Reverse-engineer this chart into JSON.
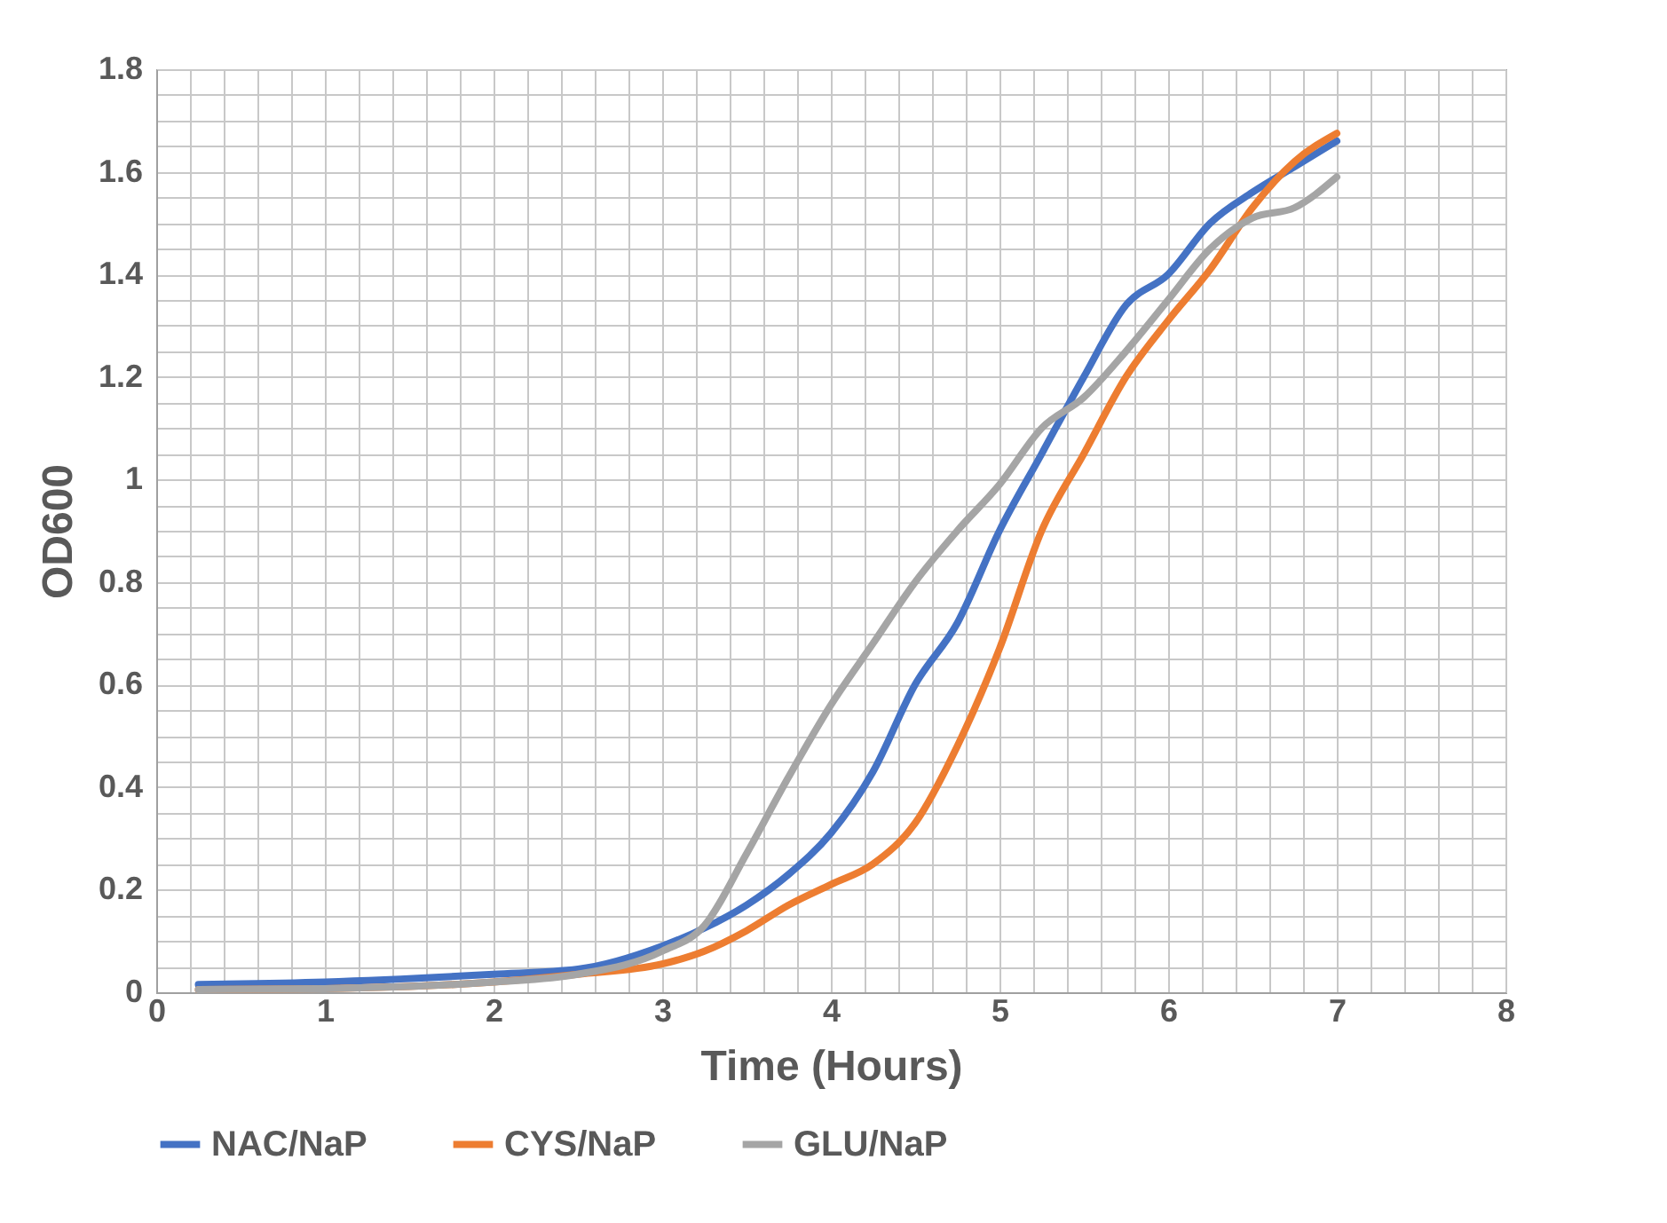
{
  "chart_data": {
    "type": "line",
    "xlabel": "Time (Hours)",
    "ylabel": "OD600",
    "x": [
      0.25,
      1,
      2,
      2.5,
      3,
      3.25,
      3.5,
      3.75,
      4,
      4.25,
      4.5,
      4.75,
      5,
      5.25,
      5.5,
      5.75,
      6,
      6.25,
      6.5,
      6.75,
      7
    ],
    "series": [
      {
        "name": "NAC/NaP",
        "color": "#4472c4",
        "values": [
          0.015,
          0.02,
          0.035,
          0.045,
          0.09,
          0.125,
          0.17,
          0.23,
          0.31,
          0.43,
          0.6,
          0.72,
          0.9,
          1.05,
          1.2,
          1.34,
          1.4,
          1.5,
          1.56,
          1.61,
          1.66
        ]
      },
      {
        "name": "CYS/NaP",
        "color": "#ed7d31",
        "values": [
          0.005,
          0.007,
          0.02,
          0.035,
          0.055,
          0.08,
          0.12,
          0.17,
          0.21,
          0.25,
          0.33,
          0.48,
          0.67,
          0.9,
          1.05,
          1.2,
          1.31,
          1.41,
          1.53,
          1.62,
          1.675
        ]
      },
      {
        "name": "GLU/NaP",
        "color": "#a5a5a5",
        "values": [
          0.005,
          0.007,
          0.02,
          0.035,
          0.08,
          0.13,
          0.27,
          0.42,
          0.56,
          0.68,
          0.8,
          0.9,
          0.99,
          1.1,
          1.16,
          1.25,
          1.35,
          1.45,
          1.51,
          1.53,
          1.59
        ]
      }
    ],
    "xlim": [
      0,
      8
    ],
    "xticks": [
      0,
      {
        "value": 0.2,
        "label": null
      },
      {
        "value": 0.4,
        "label": null
      },
      {
        "value": 0.6,
        "label": null
      },
      {
        "value": 0.8,
        "label": null
      },
      1,
      {
        "value": 1.2,
        "label": null
      },
      {
        "value": 1.4,
        "label": null
      },
      {
        "value": 1.6,
        "label": null
      },
      {
        "value": 1.8,
        "label": null
      },
      2,
      {
        "value": 2.2,
        "label": null
      },
      {
        "value": 2.4,
        "label": null
      },
      {
        "value": 2.6,
        "label": null
      },
      {
        "value": 2.8,
        "label": null
      },
      3,
      {
        "value": 3.2,
        "label": null
      },
      {
        "value": 3.4,
        "label": null
      },
      {
        "value": 3.6,
        "label": null
      },
      {
        "value": 3.8,
        "label": null
      },
      4,
      {
        "value": 4.2,
        "label": null
      },
      {
        "value": 4.4,
        "label": null
      },
      {
        "value": 4.6,
        "label": null
      },
      {
        "value": 4.8,
        "label": null
      },
      5,
      {
        "value": 5.2,
        "label": null
      },
      {
        "value": 5.4,
        "label": null
      },
      {
        "value": 5.6,
        "label": null
      },
      {
        "value": 5.8,
        "label": null
      },
      6,
      {
        "value": 6.2,
        "label": null
      },
      {
        "value": 6.4,
        "label": null
      },
      {
        "value": 6.6,
        "label": null
      },
      {
        "value": 6.8,
        "label": null
      },
      7,
      {
        "value": 7.2,
        "label": null
      },
      {
        "value": 7.4,
        "label": null
      },
      {
        "value": 7.6,
        "label": null
      },
      {
        "value": 7.8,
        "label": null
      },
      8
    ],
    "ylim": [
      0,
      1.8
    ],
    "yticks": [
      0,
      {
        "value": 0.05,
        "label": null
      },
      {
        "value": 0.1,
        "label": null
      },
      {
        "value": 0.15,
        "label": null
      },
      0.2,
      {
        "value": 0.25,
        "label": null
      },
      {
        "value": 0.3,
        "label": null
      },
      {
        "value": 0.35,
        "label": null
      },
      0.4,
      {
        "value": 0.45,
        "label": null
      },
      {
        "value": 0.5,
        "label": null
      },
      {
        "value": 0.55,
        "label": null
      },
      0.6,
      {
        "value": 0.65,
        "label": null
      },
      {
        "value": 0.7,
        "label": null
      },
      {
        "value": 0.75,
        "label": null
      },
      0.8,
      {
        "value": 0.85,
        "label": null
      },
      {
        "value": 0.9,
        "label": null
      },
      {
        "value": 0.95,
        "label": null
      },
      1,
      {
        "value": 1.05,
        "label": null
      },
      {
        "value": 1.1,
        "label": null
      },
      {
        "value": 1.15,
        "label": null
      },
      1.2,
      {
        "value": 1.25,
        "label": null
      },
      {
        "value": 1.3,
        "label": null
      },
      {
        "value": 1.35,
        "label": null
      },
      1.4,
      {
        "value": 1.45,
        "label": null
      },
      {
        "value": 1.5,
        "label": null
      },
      {
        "value": 1.55,
        "label": null
      },
      1.6,
      {
        "value": 1.65,
        "label": null
      },
      {
        "value": 1.7,
        "label": null
      },
      {
        "value": 1.75,
        "label": null
      },
      1.8
    ],
    "grid": true,
    "legend": "bottom",
    "marker": "none",
    "line_style": "solid"
  }
}
